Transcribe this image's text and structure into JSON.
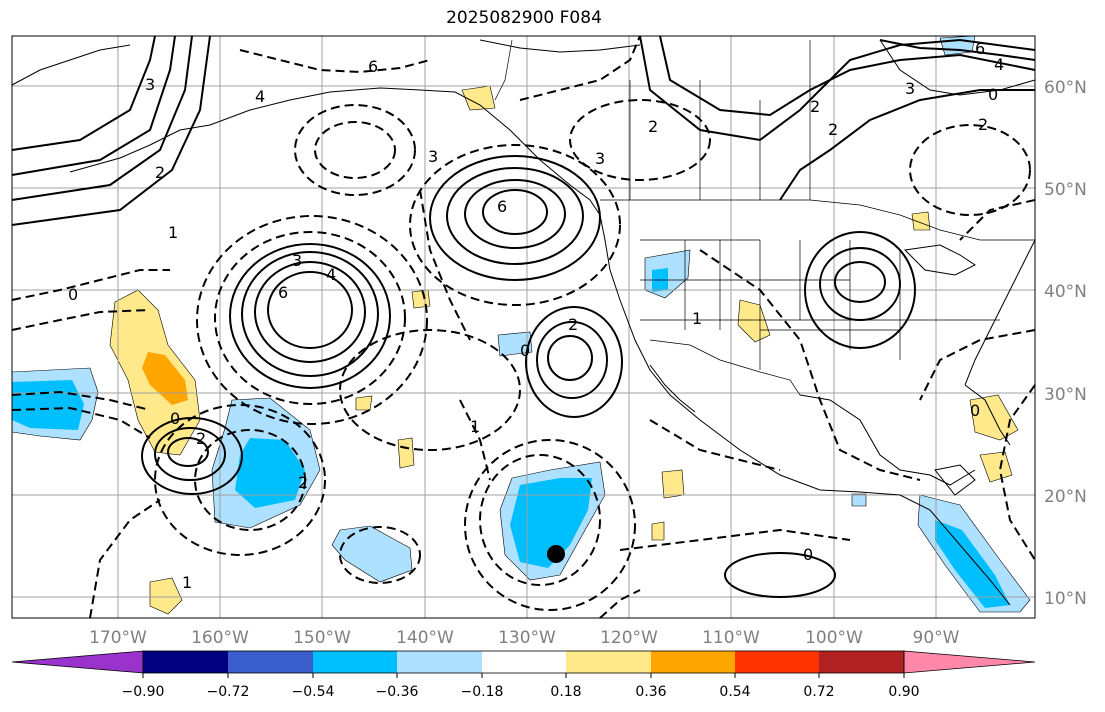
{
  "title": "2025082900 F084",
  "map": {
    "latitude_labels": [
      "60°N",
      "50°N",
      "40°N",
      "30°N",
      "20°N",
      "10°N"
    ],
    "longitude_labels": [
      "170°W",
      "160°W",
      "150°W",
      "140°W",
      "130°W",
      "120°W",
      "110°W",
      "100°W",
      "90°W"
    ],
    "contour_labels": [
      "6",
      "4",
      "3",
      "2",
      "1",
      "0",
      "6",
      "3",
      "4",
      "6",
      "3",
      "2",
      "2",
      "2",
      "3",
      "0",
      "1",
      "2",
      "2",
      "1",
      "0",
      "0",
      "2",
      "3",
      "6",
      "4",
      "0",
      "2",
      "1",
      "0"
    ],
    "colors": {
      "strong_negative": "#00bfff",
      "weak_negative": "#aee0ff",
      "weak_positive": "#ffe98a",
      "moderate_positive": "#ffa500",
      "contour": "#000000",
      "land_outline": "#000000",
      "gridline": "#a0a0a0"
    }
  },
  "colorbar": {
    "tick_labels": [
      "−0.90",
      "−0.72",
      "−0.54",
      "−0.36",
      "−0.18",
      "0.18",
      "0.36",
      "0.54",
      "0.72",
      "0.90"
    ],
    "colors": [
      "#9933cc",
      "#000080",
      "#3a5fcd",
      "#00bfff",
      "#aee0ff",
      "#ffffff",
      "#ffe98a",
      "#ffa500",
      "#ff3300",
      "#b22222",
      "#ff88aa"
    ]
  }
}
